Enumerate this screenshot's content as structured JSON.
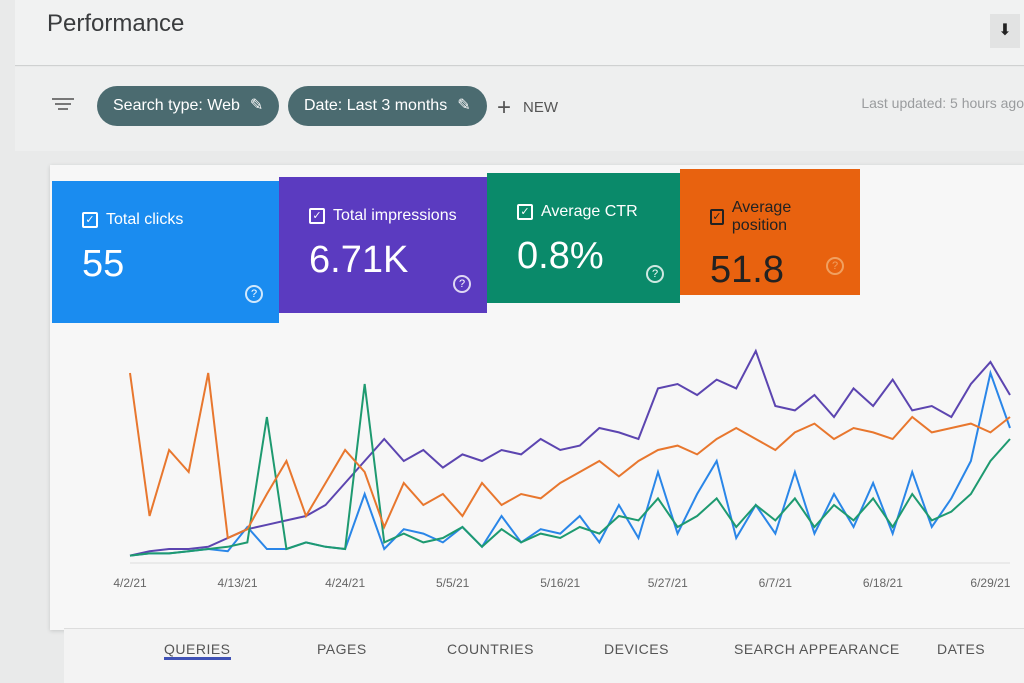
{
  "header": {
    "title": "Performance",
    "download_icon": "download-icon"
  },
  "toolbar": {
    "filter_icon": "filter-icon",
    "chips": [
      {
        "label": "Search type: Web",
        "icon": "pencil-icon"
      },
      {
        "label": "Date: Last 3 months",
        "icon": "pencil-icon"
      }
    ],
    "new_label": "NEW",
    "new_icon": "plus-icon",
    "last_updated": "Last updated: 5 hours ago"
  },
  "cards": [
    {
      "label": "Total clicks",
      "value": "55",
      "color": "#1a8cf0",
      "checked": true
    },
    {
      "label": "Total impressions",
      "value": "6.71K",
      "color": "#5b3bc0",
      "checked": true
    },
    {
      "label": "Average CTR",
      "value": "0.8%",
      "color": "#0a8a6a",
      "checked": true
    },
    {
      "label": "Average position",
      "value": "51.8",
      "color": "#e8620f",
      "checked": true
    }
  ],
  "chart_data": {
    "type": "line",
    "x": [
      "4/2/21",
      "4/4/21",
      "4/6/21",
      "4/8/21",
      "4/10/21",
      "4/12/21",
      "4/14/21",
      "4/16/21",
      "4/18/21",
      "4/20/21",
      "4/22/21",
      "4/24/21",
      "4/26/21",
      "4/28/21",
      "4/30/21",
      "5/2/21",
      "5/4/21",
      "5/6/21",
      "5/8/21",
      "5/10/21",
      "5/12/21",
      "5/14/21",
      "5/16/21",
      "5/18/21",
      "5/20/21",
      "5/22/21",
      "5/24/21",
      "5/26/21",
      "5/28/21",
      "5/30/21",
      "6/1/21",
      "6/3/21",
      "6/5/21",
      "6/7/21",
      "6/9/21",
      "6/11/21",
      "6/13/21",
      "6/15/21",
      "6/17/21",
      "6/19/21",
      "6/21/21",
      "6/23/21",
      "6/25/21",
      "6/27/21",
      "6/29/21",
      "7/1/21"
    ],
    "x_ticks": [
      "4/2/21",
      "4/13/21",
      "4/24/21",
      "5/5/21",
      "5/16/21",
      "5/27/21",
      "6/7/21",
      "6/18/21",
      "6/29/21"
    ],
    "y_range": [
      0,
      100
    ],
    "grid": false,
    "series": [
      {
        "key": "clicks",
        "color": "#2a86e8",
        "values": [
          2,
          3,
          3,
          4,
          5,
          4,
          15,
          5,
          5,
          8,
          6,
          5,
          30,
          5,
          14,
          12,
          8,
          15,
          6,
          20,
          8,
          14,
          12,
          20,
          8,
          25,
          10,
          40,
          12,
          30,
          45,
          10,
          25,
          12,
          40,
          12,
          30,
          15,
          35,
          12,
          40,
          15,
          28,
          45,
          85,
          60
        ]
      },
      {
        "key": "impressions",
        "color": "#5c45b0",
        "values": [
          2,
          4,
          5,
          5,
          6,
          10,
          14,
          16,
          18,
          20,
          25,
          35,
          45,
          55,
          45,
          50,
          42,
          48,
          45,
          50,
          48,
          55,
          50,
          52,
          60,
          58,
          55,
          78,
          80,
          75,
          82,
          78,
          95,
          70,
          68,
          75,
          65,
          78,
          70,
          82,
          68,
          70,
          65,
          80,
          90,
          75
        ]
      },
      {
        "key": "ctr",
        "color": "#1e9a70",
        "values": [
          2,
          3,
          3,
          4,
          5,
          6,
          8,
          65,
          5,
          8,
          6,
          5,
          80,
          8,
          12,
          8,
          10,
          15,
          6,
          14,
          8,
          12,
          10,
          15,
          12,
          20,
          18,
          28,
          15,
          20,
          28,
          15,
          25,
          18,
          28,
          15,
          25,
          18,
          28,
          15,
          30,
          18,
          22,
          30,
          45,
          55
        ]
      },
      {
        "key": "position",
        "color": "#e8772e",
        "values": [
          85,
          20,
          50,
          40,
          85,
          10,
          14,
          30,
          45,
          20,
          35,
          50,
          40,
          15,
          35,
          25,
          30,
          20,
          35,
          25,
          30,
          28,
          35,
          40,
          45,
          38,
          45,
          50,
          52,
          48,
          55,
          60,
          55,
          50,
          58,
          62,
          55,
          60,
          58,
          55,
          65,
          58,
          60,
          62,
          58,
          65
        ]
      }
    ]
  },
  "tabs": [
    "QUERIES",
    "PAGES",
    "COUNTRIES",
    "DEVICES",
    "SEARCH APPEARANCE",
    "DATES"
  ]
}
